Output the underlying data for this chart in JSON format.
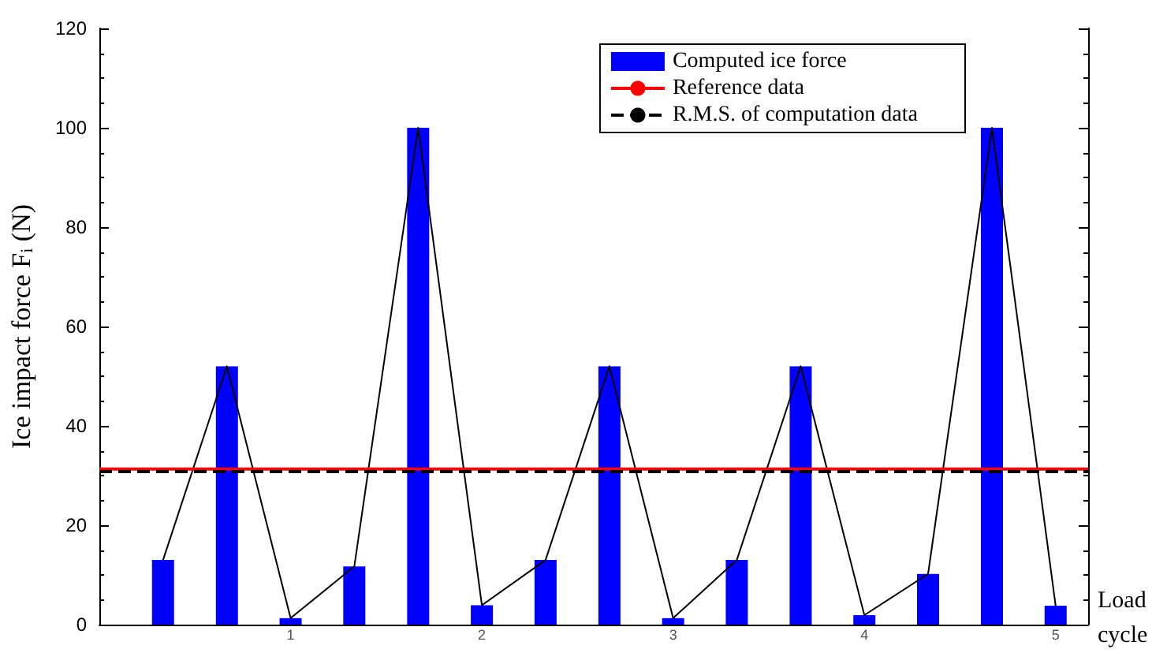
{
  "chart_data": {
    "type": "bar",
    "xlabel": "Load cycle",
    "ylabel": "Ice impact force F$_{i}$ (N)",
    "x": [
      0.333,
      0.667,
      1,
      1.333,
      1.667,
      2,
      2.333,
      2.667,
      3,
      3.333,
      3.667,
      4,
      4.333,
      4.667,
      5
    ],
    "series": [
      {
        "name": "Computed ice force",
        "color": "#0000ff",
        "values": [
          13,
          52,
          1.3,
          11.7,
          100,
          3.9,
          13,
          52,
          1.3,
          13,
          52,
          1.9,
          10.2,
          100,
          3.8
        ]
      },
      {
        "type": "line",
        "color": "#000000",
        "marker": "none",
        "line_style": "solid",
        "values": [
          13,
          52,
          1.3,
          11.7,
          100,
          3.9,
          13,
          52,
          1.3,
          13,
          52,
          1.9,
          10.2,
          100,
          3.8
        ]
      }
    ],
    "ref_lines": [
      {
        "axis": "y",
        "value": 31.3,
        "label": "Reference data",
        "color": "#ff0000",
        "line_style": "solid"
      },
      {
        "axis": "y",
        "value": 30.8,
        "label": "R.M.S. of computation data",
        "color": "#000000",
        "line_style": "dashed"
      }
    ],
    "xlim": [
      0,
      5.17
    ],
    "xticks": [
      1,
      2,
      3,
      4,
      5
    ],
    "ylim": [
      0,
      120
    ],
    "yticks": [
      0,
      20,
      40,
      60,
      80,
      100,
      120
    ],
    "grid": false,
    "legend": "top right"
  }
}
